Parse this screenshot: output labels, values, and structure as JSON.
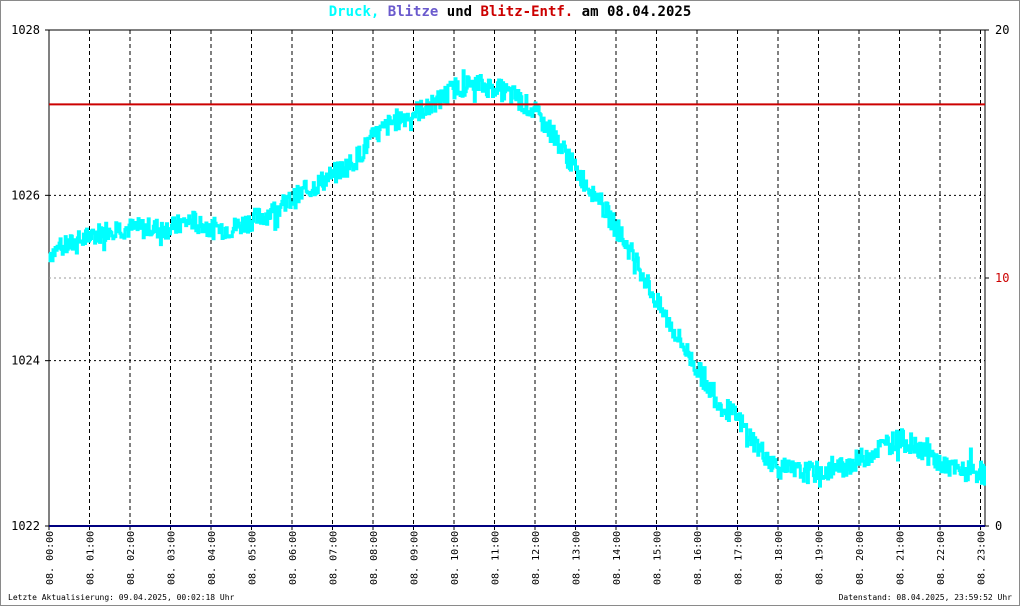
{
  "title": {
    "part1": "Druck,",
    "part2": "Blitze",
    "part3": "und",
    "part4": "Blitz-Entf.",
    "part5": "am 08.04.2025"
  },
  "footer": {
    "left": "Letzte Aktualisierung: 09.04.2025, 00:02:18 Uhr",
    "right": "Datenstand: 08.04.2025, 23:59:52 Uhr"
  },
  "colors": {
    "pressure": "#00ffff",
    "strikes": "#6a5acd",
    "distance": "#cc0000",
    "text": "#000000",
    "grid": "#000000",
    "redline": "#cc0000",
    "baseline": "#000080"
  },
  "chart_data": {
    "type": "line",
    "ylim_left": [
      1022,
      1028
    ],
    "yticks_left": [
      "1022",
      "1024",
      "1026",
      "1028"
    ],
    "ylim_right": [
      0,
      20
    ],
    "yticks_right": [
      "0",
      "10",
      "20"
    ],
    "xlim_hours": [
      0,
      23.1
    ],
    "xticks": [
      "08. 00:00",
      "08. 01:00",
      "08. 02:00",
      "08. 03:00",
      "08. 04:00",
      "08. 05:00",
      "08. 06:00",
      "08. 07:00",
      "08. 08:00",
      "08. 09:00",
      "08. 10:00",
      "08. 11:00",
      "08. 12:00",
      "08. 13:00",
      "08. 14:00",
      "08. 15:00",
      "08. 16:00",
      "08. 17:00",
      "08. 18:00",
      "08. 19:00",
      "08. 20:00",
      "08. 21:00",
      "08. 22:00",
      "08. 23:00"
    ],
    "grid": true,
    "series": [
      {
        "name": "Druck",
        "x": [
          0,
          0.5,
          1,
          1.5,
          2,
          2.5,
          3,
          3.5,
          4,
          4.5,
          5,
          5.5,
          6,
          6.5,
          7,
          7.5,
          8,
          8.5,
          9,
          9.5,
          10,
          10.5,
          11,
          11.5,
          12,
          12.5,
          13,
          13.5,
          14,
          14.5,
          15,
          15.5,
          16,
          16.5,
          17,
          17.5,
          18,
          18.5,
          19,
          19.5,
          20,
          20.5,
          21,
          21.5,
          22,
          22.5,
          23,
          23.1
        ],
        "y": [
          1025.3,
          1025.4,
          1025.5,
          1025.6,
          1025.6,
          1025.6,
          1025.6,
          1025.7,
          1025.6,
          1025.6,
          1025.7,
          1025.8,
          1025.95,
          1026.1,
          1026.25,
          1026.4,
          1026.7,
          1026.9,
          1027.0,
          1027.1,
          1027.3,
          1027.35,
          1027.3,
          1027.2,
          1027.0,
          1026.7,
          1026.3,
          1026.0,
          1025.6,
          1025.2,
          1024.7,
          1024.3,
          1023.9,
          1023.5,
          1023.3,
          1022.95,
          1022.7,
          1022.65,
          1022.65,
          1022.7,
          1022.8,
          1022.95,
          1023.05,
          1022.95,
          1022.75,
          1022.65,
          1022.65,
          1022.6
        ]
      },
      {
        "name": "Blitz-Entf.",
        "y_right": 17
      },
      {
        "name": "Blitze",
        "y_right": 0
      }
    ]
  }
}
